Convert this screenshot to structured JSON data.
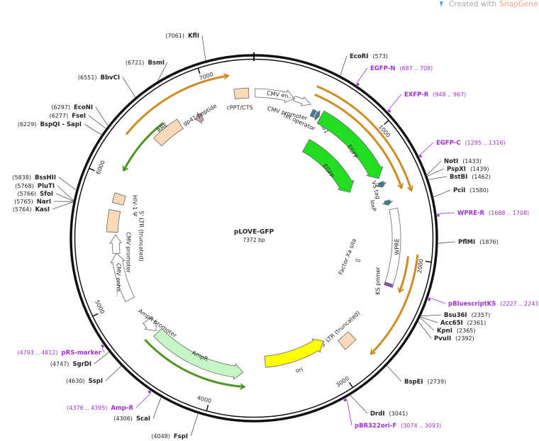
{
  "header": {
    "prefix": "Created with",
    "brand": "SnapGene®"
  },
  "map": {
    "name": "pLOVE-GFP",
    "length": {
      "value": 7372,
      "label": "7372 bp"
    },
    "ticks": [
      1000,
      2000,
      3000,
      4000,
      5000,
      6000,
      7000
    ],
    "sites": [
      {
        "name": "KflI",
        "position": {
          "value": 7061,
          "label": "(7061)"
        }
      },
      {
        "name": "BsmI",
        "position": {
          "value": 6721,
          "label": "(6721)"
        }
      },
      {
        "name": "BbvCI",
        "position": {
          "value": 6551,
          "label": "(6551)"
        }
      },
      {
        "name": "EcoNI",
        "position": {
          "value": 6297,
          "label": "(6297)"
        }
      },
      {
        "name": "FseI",
        "position": {
          "value": 6277,
          "label": "(6277)"
        }
      },
      {
        "name": "BspQI - SapI",
        "position": {
          "value": 6229,
          "label": "(6229)"
        }
      },
      {
        "name": "BssHII",
        "position": {
          "value": 5838,
          "label": "(5838)"
        }
      },
      {
        "name": "PluTI",
        "position": {
          "value": 5768,
          "label": "(5768)"
        }
      },
      {
        "name": "SfoI",
        "position": {
          "value": 5766,
          "label": "(5766)"
        }
      },
      {
        "name": "NarI",
        "position": {
          "value": 5765,
          "label": "(5765)"
        }
      },
      {
        "name": "KasI",
        "position": {
          "value": 5764,
          "label": "(5764)"
        }
      },
      {
        "name": "SgrDI",
        "position": {
          "value": 4747,
          "label": "(4747)"
        }
      },
      {
        "name": "SspI",
        "position": {
          "value": 4630,
          "label": "(4630)"
        }
      },
      {
        "name": "ScaI",
        "position": {
          "value": 4306,
          "label": "(4306)"
        }
      },
      {
        "name": "FspI",
        "position": {
          "value": 4048,
          "label": "(4048)"
        }
      },
      {
        "name": "EcoRI",
        "position": {
          "value": 573,
          "label": "(573)"
        }
      },
      {
        "name": "NotI",
        "position": {
          "value": 1433,
          "label": "(1433)"
        }
      },
      {
        "name": "PspXI",
        "position": {
          "value": 1439,
          "label": "(1439)"
        }
      },
      {
        "name": "BstBI",
        "position": {
          "value": 1462,
          "label": "(1462)"
        }
      },
      {
        "name": "PciI",
        "position": {
          "value": 1580,
          "label": "(1580)"
        }
      },
      {
        "name": "PflMI",
        "position": {
          "value": 1876,
          "label": "(1876)"
        }
      },
      {
        "name": "Bsu36I",
        "position": {
          "value": 2357,
          "label": "(2357)"
        }
      },
      {
        "name": "Acc65I",
        "position": {
          "value": 2361,
          "label": "(2361)"
        }
      },
      {
        "name": "KpnI",
        "position": {
          "value": 2365,
          "label": "(2365)"
        }
      },
      {
        "name": "PvuII",
        "position": {
          "value": 2392,
          "label": "(2392)"
        }
      },
      {
        "name": "BspEI",
        "position": {
          "value": 2739,
          "label": "(2739)"
        }
      },
      {
        "name": "DrdI",
        "position": {
          "value": 3041,
          "label": "(3041)"
        }
      }
    ],
    "primers": [
      {
        "name": "EGFP-N",
        "position": {
          "value": 687,
          "label": "(687 .. 708)"
        }
      },
      {
        "name": "EXFP-R",
        "position": {
          "value": 948,
          "label": "(948 .. 967)"
        }
      },
      {
        "name": "EGFP-C",
        "position": {
          "value": 1295,
          "label": "(1295 .. 1316)"
        }
      },
      {
        "name": "WPRE-R",
        "position": {
          "value": 1688,
          "label": "(1688 .. 1708)"
        }
      },
      {
        "name": "pBluescriptKS",
        "position": {
          "value": 2227,
          "label": "(2227 .. 2243)"
        }
      },
      {
        "name": "pBR322ori-F",
        "position": {
          "value": 3074,
          "label": "(3074 .. 3093)"
        }
      },
      {
        "name": "Amp-R",
        "position": {
          "value": 4376,
          "label": "(4376 .. 4395)"
        }
      },
      {
        "name": "pRS-marker",
        "position": {
          "value": 4793,
          "label": "(4793 .. 4812)"
        }
      }
    ],
    "features": [
      {
        "name": "CMV en...",
        "start": 10,
        "end": 330,
        "strand": 1,
        "color": "#ffffff"
      },
      {
        "name": "CMV promoter",
        "start": 330,
        "end": 470,
        "strand": 1,
        "color": "#ffffff"
      },
      {
        "name": "cPPT/CTS",
        "start": 7215,
        "end": 7330,
        "strand": 0,
        "color": "#f9d9b8"
      },
      {
        "name": "gp41 peptide",
        "start": 6840,
        "end": 6900,
        "strand": -1,
        "color": "#c9a0b6"
      },
      {
        "name": "RRE",
        "start": 6450,
        "end": 6700,
        "strand": 0,
        "color": "#f9d9b8"
      },
      {
        "name": "attB1",
        "start": 505,
        "end": 535,
        "strand": 0,
        "color": "#3a7f8f"
      },
      {
        "name": "tet operator",
        "start": 545,
        "end": 578,
        "strand": 1,
        "color": "#3a7f8f"
      },
      {
        "name": "EGFP",
        "start": 590,
        "end": 1320,
        "strand": 1,
        "color": "#22dd22"
      },
      {
        "name": "EGFP",
        "start": 600,
        "end": 1320,
        "strand": 1,
        "color": "#22dd22"
      },
      {
        "name": "V5 tag",
        "start": 1355,
        "end": 1400,
        "strand": 1,
        "color": "#3a7f8f"
      },
      {
        "name": "loxP",
        "start": 1520,
        "end": 1560,
        "strand": 1,
        "color": "#3a7f8f"
      },
      {
        "name": "WPRE",
        "start": 1600,
        "end": 2220,
        "strand": 0,
        "color": "#ffffff"
      },
      {
        "name": "KS primer",
        "start": 2225,
        "end": 2245,
        "strand": 0,
        "color": "#9b3bc8"
      },
      {
        "name": "Factor Xa site",
        "start": 2080,
        "end": 2100,
        "strand": 0,
        "color": "#ffffff"
      },
      {
        "name": "5' LTR (truncated)",
        "start": 2760,
        "end": 2880,
        "strand": 0,
        "color": "#f9d9b8"
      },
      {
        "name": "ori",
        "start": 2990,
        "end": 3580,
        "strand": -1,
        "color": "#ffff00"
      },
      {
        "name": "AmpR",
        "start": 3780,
        "end": 4620,
        "strand": -1,
        "color": "#c6f5c6"
      },
      {
        "name": "AmpR promoter",
        "start": 4640,
        "end": 4760,
        "strand": -1,
        "color": "#ffffff"
      },
      {
        "name": "CMV enha...",
        "start": 4990,
        "end": 5400,
        "strand": 1,
        "color": "#ffffff"
      },
      {
        "name": "CMV promoter",
        "start": 5400,
        "end": 5560,
        "strand": 1,
        "color": "#ffffff"
      },
      {
        "name": "5' LTR (truncated)",
        "start": 5580,
        "end": 5760,
        "strand": 0,
        "color": "#f9d9b8"
      },
      {
        "name": "HIV-1 Ψ",
        "start": 5820,
        "end": 5900,
        "strand": 0,
        "color": "#f9d9b8"
      }
    ],
    "orfs": [
      {
        "start": 460,
        "end": 1500,
        "strand": 1,
        "color": "#c8800c"
      },
      {
        "start": 470,
        "end": 1460,
        "strand": 1,
        "color": "#c8800c"
      },
      {
        "start": 1960,
        "end": 2760,
        "strand": 1,
        "color": "#c8800c"
      },
      {
        "start": 1980,
        "end": 2260,
        "strand": 1,
        "color": "#c8800c"
      },
      {
        "start": 6330,
        "end": 7190,
        "strand": 1,
        "color": "#c8800c"
      },
      {
        "start": 6090,
        "end": 6590,
        "strand": -1,
        "color": "#3a8a0a"
      },
      {
        "start": 3760,
        "end": 4650,
        "strand": -1,
        "color": "#3a8a0a"
      }
    ]
  }
}
